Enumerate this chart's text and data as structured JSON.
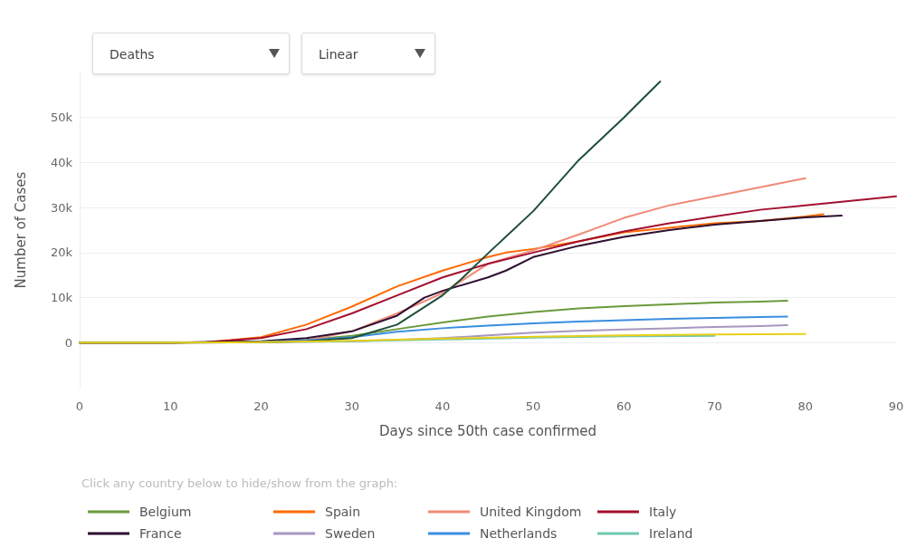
{
  "chart_data": {
    "type": "line",
    "xlabel": "Days since 50th case confirmed",
    "ylabel": "Number of Cases",
    "legend_title": "Click any country below to hide/show from the graph:",
    "annotations": [
      "Deaths",
      "Linear"
    ],
    "xlim": [
      0,
      90
    ],
    "xticks": [
      0,
      10,
      20,
      30,
      40,
      50,
      60,
      70,
      80,
      90
    ],
    "ylim": [
      -10000,
      60000
    ],
    "yticks": [
      {
        "value": 0,
        "label": "0"
      },
      {
        "value": 10000,
        "label": "10k"
      },
      {
        "value": 20000,
        "label": "20k"
      },
      {
        "value": 30000,
        "label": "30k"
      },
      {
        "value": 40000,
        "label": "40k"
      },
      {
        "value": 50000,
        "label": "50k"
      }
    ],
    "grid": "y",
    "legend": "bottom",
    "marker": "none",
    "line_style": "solid",
    "series": [
      {
        "name": "Belgium",
        "color": "#6a9a3a",
        "x": [
          0,
          10,
          20,
          25,
          30,
          35,
          40,
          45,
          50,
          55,
          60,
          65,
          70,
          75,
          78
        ],
        "values": [
          0,
          0,
          200,
          600,
          1500,
          3000,
          4500,
          5800,
          6800,
          7600,
          8100,
          8500,
          8900,
          9100,
          9300
        ]
      },
      {
        "name": "Spain",
        "color": "#ff6a00",
        "x": [
          0,
          10,
          14,
          20,
          25,
          30,
          35,
          40,
          45,
          47,
          50,
          55,
          60,
          65,
          70,
          75,
          80,
          82
        ],
        "values": [
          0,
          0,
          100,
          1200,
          4000,
          8000,
          12500,
          16000,
          19000,
          20000,
          20800,
          22500,
          24500,
          25500,
          26500,
          27000,
          28000,
          28500
        ]
      },
      {
        "name": "United Kingdom",
        "color": "#f08a78",
        "x": [
          0,
          10,
          20,
          25,
          30,
          35,
          40,
          45,
          50,
          55,
          60,
          65,
          70,
          75,
          80
        ],
        "values": [
          0,
          0,
          200,
          500,
          2500,
          6500,
          11000,
          17500,
          20500,
          24000,
          27700,
          30500,
          32500,
          34500,
          36500
        ]
      },
      {
        "name": "Italy",
        "color": "#a3102f",
        "x": [
          0,
          10,
          14,
          20,
          25,
          30,
          35,
          40,
          45,
          50,
          55,
          60,
          65,
          70,
          75,
          80,
          85,
          90
        ],
        "values": [
          0,
          0,
          100,
          1000,
          3000,
          6500,
          10500,
          14500,
          17500,
          20000,
          22500,
          24700,
          26500,
          28000,
          29500,
          30500,
          31500,
          32500
        ]
      },
      {
        "name": "France",
        "color": "#2e0f30",
        "x": [
          0,
          10,
          20,
          25,
          30,
          35,
          38,
          40,
          45,
          47,
          50,
          55,
          60,
          65,
          70,
          75,
          80,
          84
        ],
        "values": [
          0,
          0,
          300,
          1000,
          2500,
          6000,
          10000,
          11500,
          14500,
          16000,
          19000,
          21500,
          23500,
          25000,
          26200,
          27000,
          27800,
          28200
        ]
      },
      {
        "name": "Sweden",
        "color": "#a897c0",
        "x": [
          0,
          10,
          20,
          30,
          35,
          40,
          45,
          50,
          55,
          60,
          65,
          70,
          75,
          78
        ],
        "values": [
          0,
          0,
          100,
          300,
          600,
          1000,
          1600,
          2200,
          2600,
          2900,
          3200,
          3500,
          3700,
          3900
        ]
      },
      {
        "name": "Netherlands",
        "color": "#3a8ee0",
        "x": [
          20,
          25,
          30,
          35,
          40,
          45,
          50,
          55,
          60,
          65,
          70,
          75,
          78
        ],
        "values": [
          200,
          500,
          1200,
          2400,
          3200,
          3800,
          4300,
          4700,
          5000,
          5300,
          5500,
          5700,
          5800
        ]
      },
      {
        "name": "Ireland",
        "color": "#6fc8b0",
        "x": [
          0,
          10,
          20,
          30,
          40,
          50,
          60,
          70
        ],
        "values": [
          0,
          0,
          100,
          300,
          700,
          1100,
          1400,
          1500
        ]
      },
      {
        "color": "#1f4f3a",
        "x": [
          0,
          10,
          20,
          25,
          30,
          35,
          40,
          42,
          45,
          50,
          55,
          60,
          62,
          64
        ],
        "values": [
          0,
          0,
          100,
          300,
          1000,
          4000,
          10500,
          14000,
          19800,
          29200,
          40500,
          50000,
          54000,
          58000
        ]
      },
      {
        "color": "#e8cf1a",
        "x": [
          0,
          10,
          20,
          30,
          40,
          50,
          60,
          70,
          80
        ],
        "values": [
          0,
          0,
          100,
          400,
          900,
          1300,
          1600,
          1800,
          1900
        ]
      }
    ]
  }
}
